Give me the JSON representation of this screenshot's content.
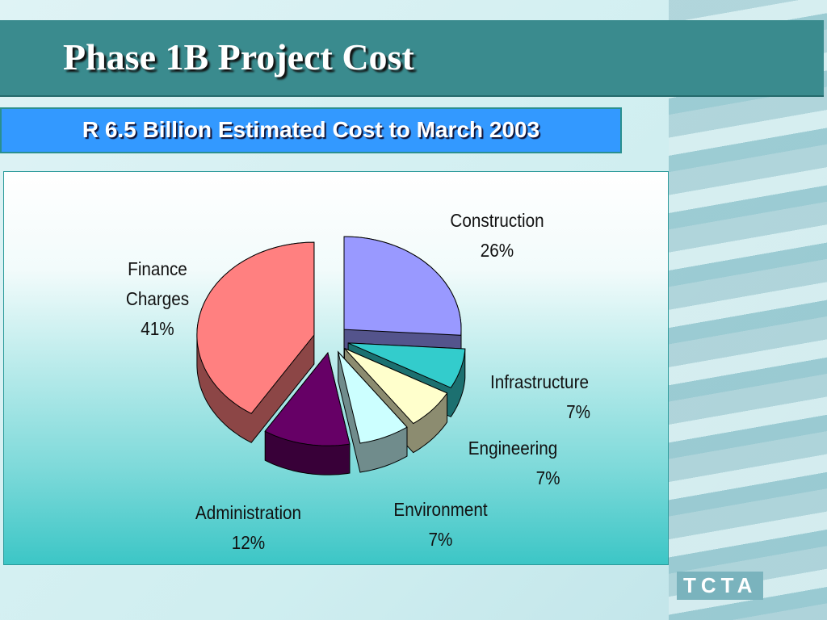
{
  "title": "Phase 1B Project Cost",
  "subtitle": "R 6.5 Billion Estimated Cost to March 2003",
  "logo": "TCTA",
  "chart_data": {
    "type": "pie",
    "categories": [
      "Construction",
      "Infrastructure",
      "Engineering",
      "Environment",
      "Administration",
      "Finance Charges"
    ],
    "values": [
      26,
      7,
      7,
      7,
      12,
      41
    ],
    "value_labels": [
      "26%",
      "7%",
      "7%",
      "7%",
      "12%",
      "41%"
    ],
    "colors": [
      "#9999ff",
      "#33cccc",
      "#ffffcc",
      "#ccffff",
      "#660066",
      "#ff8080"
    ]
  }
}
